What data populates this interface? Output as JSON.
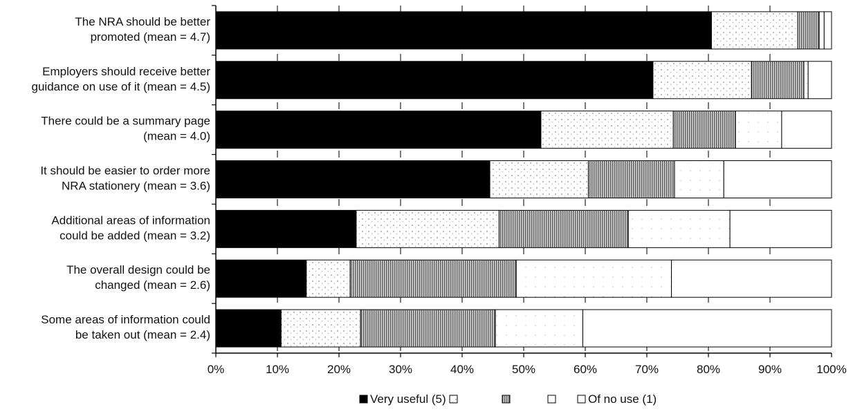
{
  "chart_data": {
    "type": "bar",
    "orientation": "horizontal",
    "stacked": true,
    "percent_stacked": true,
    "title": "",
    "xlabel": "",
    "ylabel": "",
    "xlim": [
      0,
      100
    ],
    "x_ticks": [
      "0%",
      "10%",
      "20%",
      "30%",
      "40%",
      "50%",
      "60%",
      "70%",
      "80%",
      "90%",
      "100%"
    ],
    "grid": "vertical dashed",
    "legend_position": "bottom",
    "categories": [
      [
        "The NRA should be better",
        "promoted (mean = 4.7)"
      ],
      [
        "Employers should receive better",
        "guidance on use of it (mean = 4.5)"
      ],
      [
        "There could be a summary page",
        "(mean = 4.0)"
      ],
      [
        "It should be easier to order more",
        "NRA stationery (mean = 3.6)"
      ],
      [
        "Additional areas of information",
        "could be added (mean = 3.2)"
      ],
      [
        "The overall design could be",
        "changed (mean = 2.6)"
      ],
      [
        "Some areas of information could",
        "be taken out (mean = 2.4)"
      ]
    ],
    "series": [
      {
        "name": "Very useful (5)",
        "values": [
          80.5,
          71.0,
          52.8,
          44.5,
          22.8,
          14.7,
          10.6
        ],
        "color": "#000000",
        "pattern": "solid"
      },
      {
        "name": "",
        "values": [
          14.0,
          16.0,
          21.5,
          16.0,
          23.2,
          7.1,
          12.9
        ],
        "color": "#ffffff",
        "pattern": "speckle"
      },
      {
        "name": "",
        "values": [
          3.5,
          8.5,
          10.1,
          14.0,
          21.0,
          27.0,
          21.9
        ],
        "color": "#9a9a9a",
        "pattern": "vertical-lines"
      },
      {
        "name": "",
        "values": [
          0.8,
          0.7,
          7.5,
          8.0,
          16.5,
          25.2,
          14.2
        ],
        "color": "#ffffff",
        "pattern": "light-speckle"
      },
      {
        "name": "Of no use (1)",
        "values": [
          1.2,
          3.8,
          8.1,
          17.5,
          16.5,
          26.0,
          40.4
        ],
        "color": "#ffffff",
        "pattern": "plain"
      }
    ]
  }
}
